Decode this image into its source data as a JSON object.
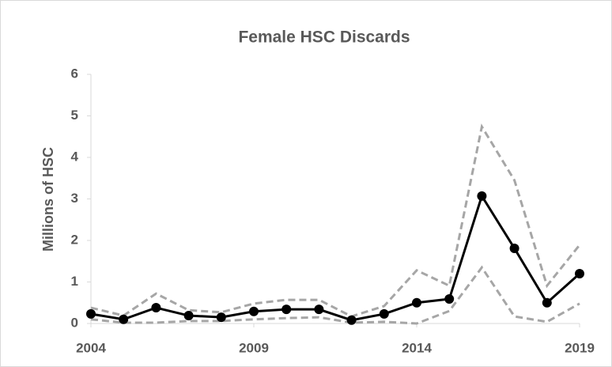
{
  "chart_data": {
    "type": "line",
    "title": "Female HSC Discards",
    "y_label": "Millions of HSC",
    "x": [
      2004,
      2005,
      2006,
      2007,
      2008,
      2009,
      2010,
      2011,
      2012,
      2013,
      2014,
      2015,
      2016,
      2017,
      2018,
      2019
    ],
    "xlim": [
      2004,
      2019
    ],
    "xticks": [
      2004,
      2009,
      2014,
      2019
    ],
    "ylim": [
      0,
      6
    ],
    "yticks": [
      0,
      1,
      2,
      3,
      4,
      5,
      6
    ],
    "series": [
      {
        "color": "#000000",
        "dashed": false,
        "markers": true,
        "values": [
          0.23,
          0.1,
          0.38,
          0.19,
          0.15,
          0.29,
          0.34,
          0.34,
          0.08,
          0.23,
          0.5,
          0.59,
          3.07,
          1.81,
          0.5,
          1.2
        ]
      },
      {
        "color": "#a6a6a6",
        "dashed": true,
        "markers": false,
        "values": [
          0.38,
          0.19,
          0.72,
          0.32,
          0.27,
          0.48,
          0.57,
          0.57,
          0.17,
          0.42,
          1.28,
          0.91,
          4.74,
          3.45,
          0.91,
          1.89
        ]
      },
      {
        "color": "#a6a6a6",
        "dashed": true,
        "markers": false,
        "values": [
          0.1,
          0.02,
          0.02,
          0.06,
          0.06,
          0.1,
          0.13,
          0.15,
          0.02,
          0.04,
          0,
          0.3,
          1.35,
          0.17,
          0.04,
          0.48
        ]
      }
    ]
  }
}
